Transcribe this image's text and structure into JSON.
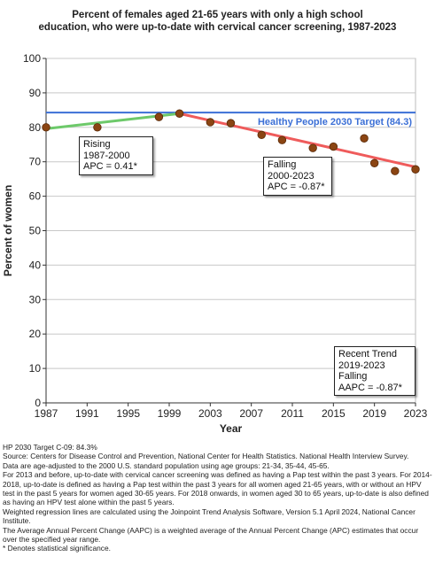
{
  "chart_data": {
    "type": "scatter",
    "title_lines": [
      "Percent of females aged 21-65 years with only a high school",
      "education, who were up-to-date with cervical cancer screening, 1987-2023"
    ],
    "xlabel": "Year",
    "ylabel": "Percent of women",
    "xlim": [
      1987,
      2023
    ],
    "ylim": [
      0,
      100
    ],
    "x_ticks": [
      "1987",
      "1991",
      "1995",
      "1999",
      "2003",
      "2007",
      "2011",
      "2015",
      "2019",
      "2023"
    ],
    "y_ticks": [
      "0",
      "10",
      "20",
      "30",
      "40",
      "50",
      "60",
      "70",
      "80",
      "90",
      "100"
    ],
    "grid": true,
    "points": [
      {
        "x": 1987,
        "y": 80.0
      },
      {
        "x": 1992,
        "y": 80.0
      },
      {
        "x": 1998,
        "y": 83.0
      },
      {
        "x": 2000,
        "y": 84.0
      },
      {
        "x": 2003,
        "y": 81.5
      },
      {
        "x": 2005,
        "y": 81.2
      },
      {
        "x": 2008,
        "y": 77.8
      },
      {
        "x": 2010,
        "y": 76.3
      },
      {
        "x": 2013,
        "y": 74.0
      },
      {
        "x": 2015,
        "y": 74.4
      },
      {
        "x": 2018,
        "y": 76.8
      },
      {
        "x": 2019,
        "y": 69.6
      },
      {
        "x": 2021,
        "y": 67.3
      },
      {
        "x": 2023,
        "y": 67.8
      }
    ],
    "target": {
      "label": "Healthy People 2030 Target (84.3)",
      "value": 84.3,
      "color": "#3b6fd6"
    },
    "trend_segments": [
      {
        "name": "Rising",
        "color": "#6dc96a",
        "x": [
          1987,
          2000
        ],
        "y": [
          79.6,
          84.0
        ]
      },
      {
        "name": "Falling",
        "color": "#ef5b5b",
        "x": [
          2000,
          2023
        ],
        "y": [
          84.0,
          68.5
        ]
      }
    ],
    "annotations": {
      "rising": [
        "Rising",
        "1987-2000",
        "APC =  0.41*"
      ],
      "falling": [
        "Falling",
        "2000-2023",
        "APC = -0.87*"
      ],
      "recent": [
        "Recent Trend",
        "2019-2023",
        "Falling",
        "AAPC = -0.87*"
      ]
    },
    "point_color": "#8b4513"
  },
  "notes": [
    "HP 2030 Target C-09: 84.3%",
    "Source: Centers for Disease Control and Prevention, National Center for Health Statistics. National Health Interview Survey.",
    "Data are age-adjusted to the 2000 U.S. standard population using age groups: 21-34, 35-44, 45-65.",
    "For 2013 and before, up-to-date with cervical cancer screening was defined as having a Pap test within the past 3 years. For 2014-2018, up-to-date is defined as having a Pap test within the past 3 years for all women aged 21-65 years, with or without an HPV test in the past 5 years for women aged 30-65 years.  For 2018 onwards, in women aged 30 to 65 years, up-to-date is also defined as having an HPV test alone within the past 5 years.",
    "Weighted regression lines are calculated using the Joinpoint Trend Analysis Software, Version 5.1 April 2024, National Cancer Institute.",
    "The Average Annual Percent Change (AAPC) is a weighted average of the Annual Percent Change (APC) estimates that occur over the specified year range.",
    "* Denotes statistical significance."
  ]
}
